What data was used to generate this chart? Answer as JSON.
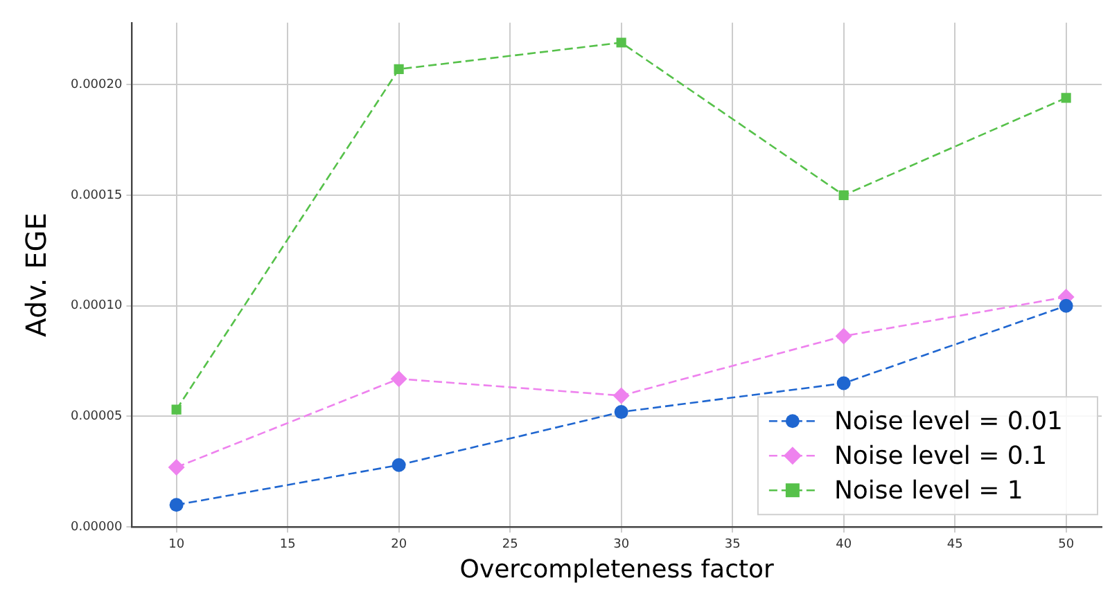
{
  "chart_data": {
    "type": "line",
    "xlabel": "Overcompleteness factor",
    "ylabel": "Adv. EGE",
    "x": [
      10,
      20,
      30,
      40,
      50
    ],
    "series": [
      {
        "name": "Noise level = 0.01",
        "color": "#1f66d0",
        "marker": "circle",
        "line_style": "dashed",
        "values": [
          1e-05,
          2.8e-05,
          5.2e-05,
          6.5e-05,
          0.0001
        ]
      },
      {
        "name": "Noise level = 0.1",
        "color": "#ee82ee",
        "marker": "diamond",
        "line_style": "dashed",
        "values": [
          2.7e-05,
          6.7e-05,
          5.94e-05,
          8.63e-05,
          0.000104
        ]
      },
      {
        "name": "Noise level = 1",
        "color": "#56c14a",
        "marker": "square",
        "line_style": "dashed",
        "values": [
          5.31e-05,
          0.000207,
          0.000219,
          0.00015,
          0.000194
        ]
      }
    ],
    "xlim": [
      8,
      51.6
    ],
    "xticks": [
      10,
      15,
      20,
      25,
      30,
      35,
      40,
      45,
      50
    ],
    "ylim": [
      0,
      0.000228
    ],
    "yticks": [
      {
        "value": 0,
        "label": "0.00000"
      },
      {
        "value": 5e-05,
        "label": "0.00005"
      },
      {
        "value": 0.0001,
        "label": "0.00010"
      },
      {
        "value": 0.00015,
        "label": "0.00015"
      },
      {
        "value": 0.0002,
        "label": "0.00020"
      }
    ],
    "grid": true,
    "legend": "bottom right"
  }
}
